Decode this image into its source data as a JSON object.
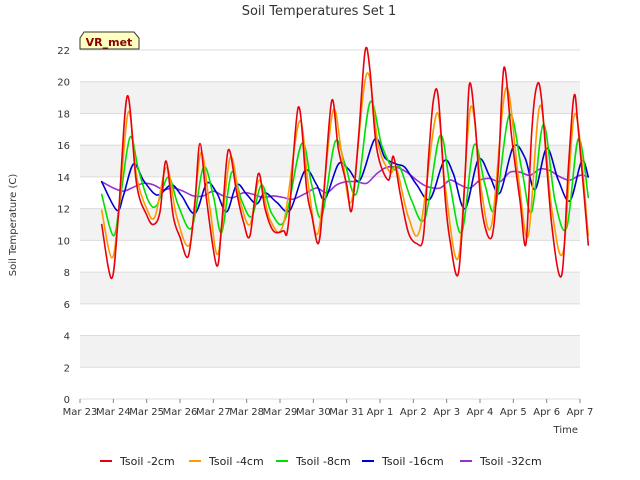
{
  "chart_data": {
    "type": "line",
    "title": "Soil Temperatures Set 1",
    "xlabel": "Time",
    "ylabel": "Soil Temperature (C)",
    "station_label": "VR_met",
    "xlim": [
      0,
      15
    ],
    "ylim": [
      0,
      22
    ],
    "x_ticks": [
      {
        "value": 0,
        "label": "Mar 23"
      },
      {
        "value": 1,
        "label": "Mar 24"
      },
      {
        "value": 2,
        "label": "Mar 25"
      },
      {
        "value": 3,
        "label": "Mar 26"
      },
      {
        "value": 4,
        "label": "Mar 27"
      },
      {
        "value": 5,
        "label": "Mar 28"
      },
      {
        "value": 6,
        "label": "Mar 29"
      },
      {
        "value": 7,
        "label": "Mar 30"
      },
      {
        "value": 8,
        "label": "Mar 31"
      },
      {
        "value": 9,
        "label": "Apr 1"
      },
      {
        "value": 10,
        "label": "Apr 2"
      },
      {
        "value": 11,
        "label": "Apr 3"
      },
      {
        "value": 12,
        "label": "Apr 4"
      },
      {
        "value": 13,
        "label": "Apr 5"
      },
      {
        "value": 14,
        "label": "Apr 6"
      },
      {
        "value": 15,
        "label": "Apr 7"
      }
    ],
    "y_ticks": [
      0,
      2,
      4,
      6,
      8,
      10,
      12,
      14,
      16,
      18,
      20,
      22
    ],
    "grid": true,
    "legend_position": "bottom",
    "series": [
      {
        "name": "Tsoil -2cm",
        "color": "#e8000b",
        "points": [
          [
            0.65,
            11.0
          ],
          [
            0.95,
            7.6
          ],
          [
            1.15,
            11.5
          ],
          [
            1.42,
            19.1
          ],
          [
            1.7,
            13.5
          ],
          [
            2.0,
            11.6
          ],
          [
            2.2,
            11.0
          ],
          [
            2.4,
            11.8
          ],
          [
            2.58,
            15.0
          ],
          [
            2.8,
            11.5
          ],
          [
            3.0,
            10.2
          ],
          [
            3.25,
            9.0
          ],
          [
            3.45,
            12.5
          ],
          [
            3.6,
            16.1
          ],
          [
            3.8,
            12.5
          ],
          [
            4.1,
            8.4
          ],
          [
            4.25,
            11.0
          ],
          [
            4.45,
            15.7
          ],
          [
            4.7,
            13.0
          ],
          [
            4.9,
            11.2
          ],
          [
            5.1,
            10.3
          ],
          [
            5.35,
            14.2
          ],
          [
            5.55,
            12.0
          ],
          [
            5.8,
            10.6
          ],
          [
            6.1,
            10.6
          ],
          [
            6.25,
            11.0
          ],
          [
            6.55,
            18.4
          ],
          [
            6.8,
            13.2
          ],
          [
            6.95,
            11.6
          ],
          [
            7.15,
            9.8
          ],
          [
            7.3,
            12.5
          ],
          [
            7.55,
            18.8
          ],
          [
            7.75,
            15.8
          ],
          [
            8.0,
            13.5
          ],
          [
            8.15,
            11.9
          ],
          [
            8.35,
            16.3
          ],
          [
            8.55,
            21.9
          ],
          [
            8.7,
            20.7
          ],
          [
            8.9,
            15.8
          ],
          [
            9.25,
            13.8
          ],
          [
            9.4,
            15.3
          ],
          [
            9.6,
            13.0
          ],
          [
            9.85,
            10.5
          ],
          [
            10.1,
            9.8
          ],
          [
            10.3,
            10.2
          ],
          [
            10.45,
            15.0
          ],
          [
            10.6,
            18.8
          ],
          [
            10.75,
            19.0
          ],
          [
            10.95,
            12.8
          ],
          [
            11.1,
            10.0
          ],
          [
            11.35,
            7.9
          ],
          [
            11.55,
            14.0
          ],
          [
            11.68,
            19.8
          ],
          [
            11.85,
            17.5
          ],
          [
            12.05,
            12.0
          ],
          [
            12.35,
            10.2
          ],
          [
            12.55,
            14.5
          ],
          [
            12.72,
            20.9
          ],
          [
            12.95,
            16.5
          ],
          [
            13.2,
            12.5
          ],
          [
            13.38,
            9.8
          ],
          [
            13.55,
            16.8
          ],
          [
            13.7,
            19.7
          ],
          [
            13.85,
            18.8
          ],
          [
            14.15,
            11.0
          ],
          [
            14.45,
            7.8
          ],
          [
            14.65,
            14.5
          ],
          [
            14.82,
            19.1
          ],
          [
            14.95,
            17.0
          ],
          [
            15.25,
            9.7
          ]
        ]
      },
      {
        "name": "Tsoil -4cm",
        "color": "#ff9a00",
        "points": [
          [
            0.65,
            11.9
          ],
          [
            0.95,
            8.9
          ],
          [
            1.15,
            11.5
          ],
          [
            1.45,
            18.1
          ],
          [
            1.7,
            14.0
          ],
          [
            2.0,
            12.0
          ],
          [
            2.25,
            11.5
          ],
          [
            2.6,
            14.6
          ],
          [
            2.9,
            11.5
          ],
          [
            3.3,
            9.8
          ],
          [
            3.62,
            15.5
          ],
          [
            3.9,
            12.0
          ],
          [
            4.15,
            9.2
          ],
          [
            4.5,
            15.2
          ],
          [
            4.8,
            12.5
          ],
          [
            5.1,
            11.0
          ],
          [
            5.38,
            13.8
          ],
          [
            5.7,
            11.3
          ],
          [
            6.1,
            11.0
          ],
          [
            6.58,
            17.5
          ],
          [
            6.85,
            13.5
          ],
          [
            7.15,
            10.5
          ],
          [
            7.58,
            18.1
          ],
          [
            7.85,
            15.5
          ],
          [
            8.15,
            12.5
          ],
          [
            8.6,
            20.5
          ],
          [
            8.95,
            16.0
          ],
          [
            9.3,
            14.3
          ],
          [
            9.5,
            14.5
          ],
          [
            9.85,
            11.5
          ],
          [
            10.2,
            10.7
          ],
          [
            10.7,
            18.0
          ],
          [
            10.95,
            13.5
          ],
          [
            11.35,
            8.9
          ],
          [
            11.72,
            18.4
          ],
          [
            12.05,
            13.0
          ],
          [
            12.35,
            11.0
          ],
          [
            12.78,
            19.6
          ],
          [
            13.15,
            14.0
          ],
          [
            13.45,
            10.3
          ],
          [
            13.8,
            18.5
          ],
          [
            14.15,
            12.0
          ],
          [
            14.5,
            9.3
          ],
          [
            14.85,
            18.0
          ],
          [
            15.25,
            10.3
          ]
        ]
      },
      {
        "name": "Tsoil -8cm",
        "color": "#00e000",
        "points": [
          [
            0.65,
            12.9
          ],
          [
            1.0,
            10.3
          ],
          [
            1.2,
            12.5
          ],
          [
            1.5,
            16.5
          ],
          [
            1.75,
            14.5
          ],
          [
            2.05,
            12.5
          ],
          [
            2.3,
            12.2
          ],
          [
            2.65,
            14.0
          ],
          [
            2.95,
            12.2
          ],
          [
            3.35,
            10.8
          ],
          [
            3.7,
            14.6
          ],
          [
            4.0,
            12.8
          ],
          [
            4.25,
            10.5
          ],
          [
            4.55,
            14.3
          ],
          [
            4.85,
            12.5
          ],
          [
            5.15,
            11.5
          ],
          [
            5.45,
            13.5
          ],
          [
            5.75,
            11.7
          ],
          [
            6.15,
            11.3
          ],
          [
            6.65,
            16.1
          ],
          [
            6.95,
            13.5
          ],
          [
            7.25,
            11.5
          ],
          [
            7.65,
            16.2
          ],
          [
            7.95,
            14.8
          ],
          [
            8.3,
            13.0
          ],
          [
            8.7,
            18.7
          ],
          [
            9.05,
            16.0
          ],
          [
            9.4,
            14.5
          ],
          [
            9.6,
            14.6
          ],
          [
            9.95,
            12.5
          ],
          [
            10.35,
            11.4
          ],
          [
            10.8,
            16.6
          ],
          [
            11.1,
            13.5
          ],
          [
            11.45,
            10.5
          ],
          [
            11.82,
            16.0
          ],
          [
            12.15,
            13.5
          ],
          [
            12.45,
            12.0
          ],
          [
            12.88,
            17.9
          ],
          [
            13.25,
            14.5
          ],
          [
            13.55,
            11.8
          ],
          [
            13.9,
            17.3
          ],
          [
            14.25,
            12.5
          ],
          [
            14.6,
            10.8
          ],
          [
            14.95,
            16.4
          ],
          [
            15.25,
            12.7
          ]
        ]
      },
      {
        "name": "Tsoil -16cm",
        "color": "#0000cc",
        "points": [
          [
            0.65,
            13.7
          ],
          [
            1.1,
            11.9
          ],
          [
            1.3,
            12.8
          ],
          [
            1.6,
            14.8
          ],
          [
            1.9,
            13.8
          ],
          [
            2.2,
            13.0
          ],
          [
            2.4,
            12.9
          ],
          [
            2.75,
            13.5
          ],
          [
            3.05,
            12.8
          ],
          [
            3.45,
            11.7
          ],
          [
            3.8,
            13.6
          ],
          [
            4.1,
            13.0
          ],
          [
            4.4,
            11.8
          ],
          [
            4.7,
            13.5
          ],
          [
            5.0,
            12.9
          ],
          [
            5.3,
            12.3
          ],
          [
            5.55,
            13.0
          ],
          [
            5.9,
            12.4
          ],
          [
            6.3,
            11.9
          ],
          [
            6.75,
            14.4
          ],
          [
            7.1,
            13.5
          ],
          [
            7.35,
            12.6
          ],
          [
            7.75,
            14.8
          ],
          [
            8.05,
            14.5
          ],
          [
            8.4,
            13.8
          ],
          [
            8.85,
            16.4
          ],
          [
            9.15,
            15.2
          ],
          [
            9.5,
            14.8
          ],
          [
            9.75,
            14.6
          ],
          [
            10.1,
            13.5
          ],
          [
            10.5,
            12.6
          ],
          [
            10.92,
            15.0
          ],
          [
            11.2,
            14.2
          ],
          [
            11.55,
            12.0
          ],
          [
            11.95,
            15.1
          ],
          [
            12.3,
            14.0
          ],
          [
            12.6,
            13.0
          ],
          [
            13.0,
            15.9
          ],
          [
            13.35,
            15.2
          ],
          [
            13.65,
            13.2
          ],
          [
            14.0,
            15.8
          ],
          [
            14.35,
            13.8
          ],
          [
            14.7,
            12.5
          ],
          [
            15.05,
            15.0
          ],
          [
            15.25,
            14.0
          ]
        ]
      },
      {
        "name": "Tsoil -32cm",
        "color": "#9b30d0",
        "points": [
          [
            0.65,
            13.7
          ],
          [
            1.0,
            13.3
          ],
          [
            1.3,
            13.1
          ],
          [
            1.55,
            13.3
          ],
          [
            1.9,
            13.6
          ],
          [
            2.2,
            13.5
          ],
          [
            2.5,
            13.2
          ],
          [
            2.8,
            13.3
          ],
          [
            3.1,
            13.1
          ],
          [
            3.4,
            12.8
          ],
          [
            3.7,
            12.8
          ],
          [
            4.0,
            13.1
          ],
          [
            4.3,
            12.8
          ],
          [
            4.6,
            12.7
          ],
          [
            4.9,
            13.0
          ],
          [
            5.2,
            12.9
          ],
          [
            5.5,
            12.7
          ],
          [
            5.8,
            12.8
          ],
          [
            6.1,
            12.7
          ],
          [
            6.4,
            12.6
          ],
          [
            6.8,
            13.0
          ],
          [
            7.1,
            13.3
          ],
          [
            7.4,
            13.0
          ],
          [
            7.7,
            13.5
          ],
          [
            8.0,
            13.7
          ],
          [
            8.3,
            13.7
          ],
          [
            8.6,
            13.6
          ],
          [
            8.9,
            14.2
          ],
          [
            9.2,
            14.6
          ],
          [
            9.5,
            14.6
          ],
          [
            9.8,
            14.3
          ],
          [
            10.1,
            13.8
          ],
          [
            10.4,
            13.4
          ],
          [
            10.8,
            13.3
          ],
          [
            11.1,
            13.8
          ],
          [
            11.4,
            13.5
          ],
          [
            11.7,
            13.3
          ],
          [
            12.0,
            13.8
          ],
          [
            12.3,
            13.9
          ],
          [
            12.6,
            13.7
          ],
          [
            12.9,
            14.3
          ],
          [
            13.2,
            14.3
          ],
          [
            13.5,
            14.1
          ],
          [
            13.8,
            14.5
          ],
          [
            14.1,
            14.4
          ],
          [
            14.4,
            14.0
          ],
          [
            14.7,
            13.8
          ],
          [
            15.0,
            14.1
          ],
          [
            15.25,
            14.0
          ]
        ]
      }
    ]
  }
}
